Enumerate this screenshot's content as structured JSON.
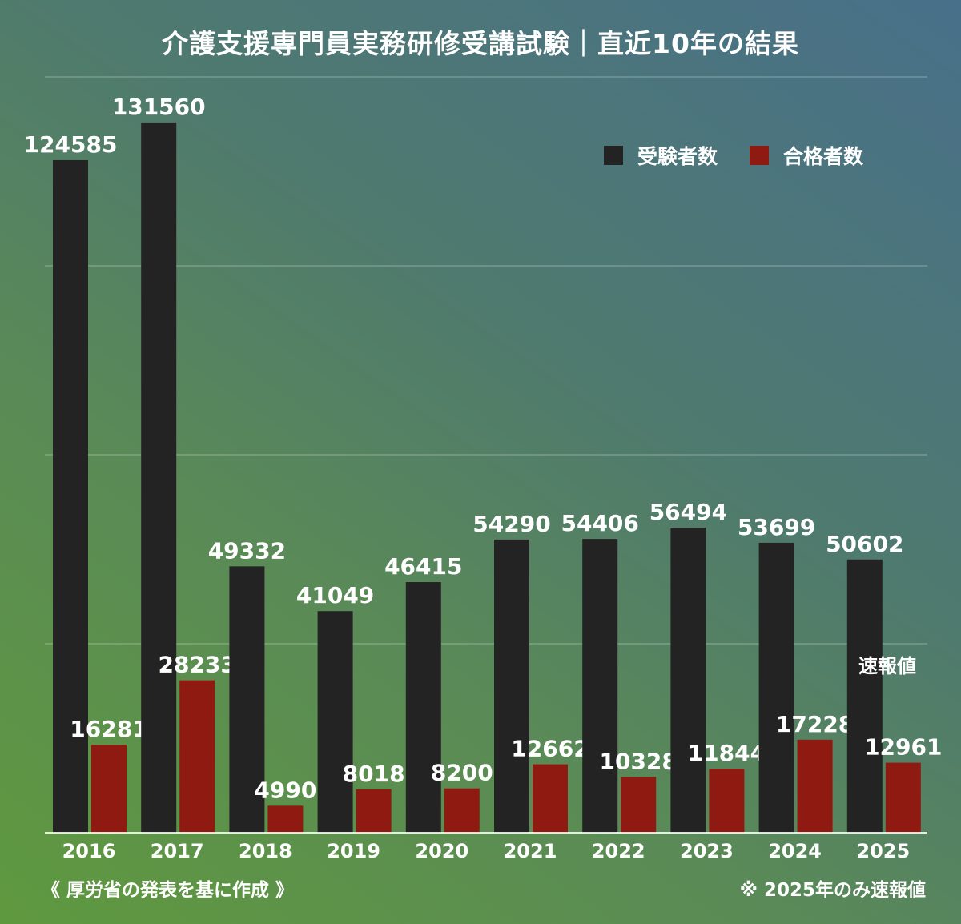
{
  "chart_data": {
    "type": "bar",
    "title": "介護支援専門員実務研修受講試験｜直近10年の結果",
    "categories": [
      "2016",
      "2017",
      "2018",
      "2019",
      "2020",
      "2021",
      "2022",
      "2023",
      "2024",
      "2025"
    ],
    "series": [
      {
        "name": "受験者数",
        "color": "#232323",
        "values": [
          124585,
          131560,
          49332,
          41049,
          46415,
          54290,
          54406,
          56494,
          53699,
          50602
        ]
      },
      {
        "name": "合格者数",
        "color": "#8e1a12",
        "values": [
          16281,
          28233,
          4990,
          8018,
          8200,
          12662,
          10328,
          11844,
          17228,
          12961
        ]
      }
    ],
    "ylim": [
      0,
      140000
    ],
    "gridlines": [
      0,
      35000,
      70000,
      105000,
      140000
    ],
    "grid": true,
    "legend_position": "top-right",
    "data_labels": true,
    "bar_annotation": "速報値",
    "footnote_left": "《 厚労省の発表を基に作成 》",
    "footnote_right": "※ 2025年のみ速報値"
  }
}
